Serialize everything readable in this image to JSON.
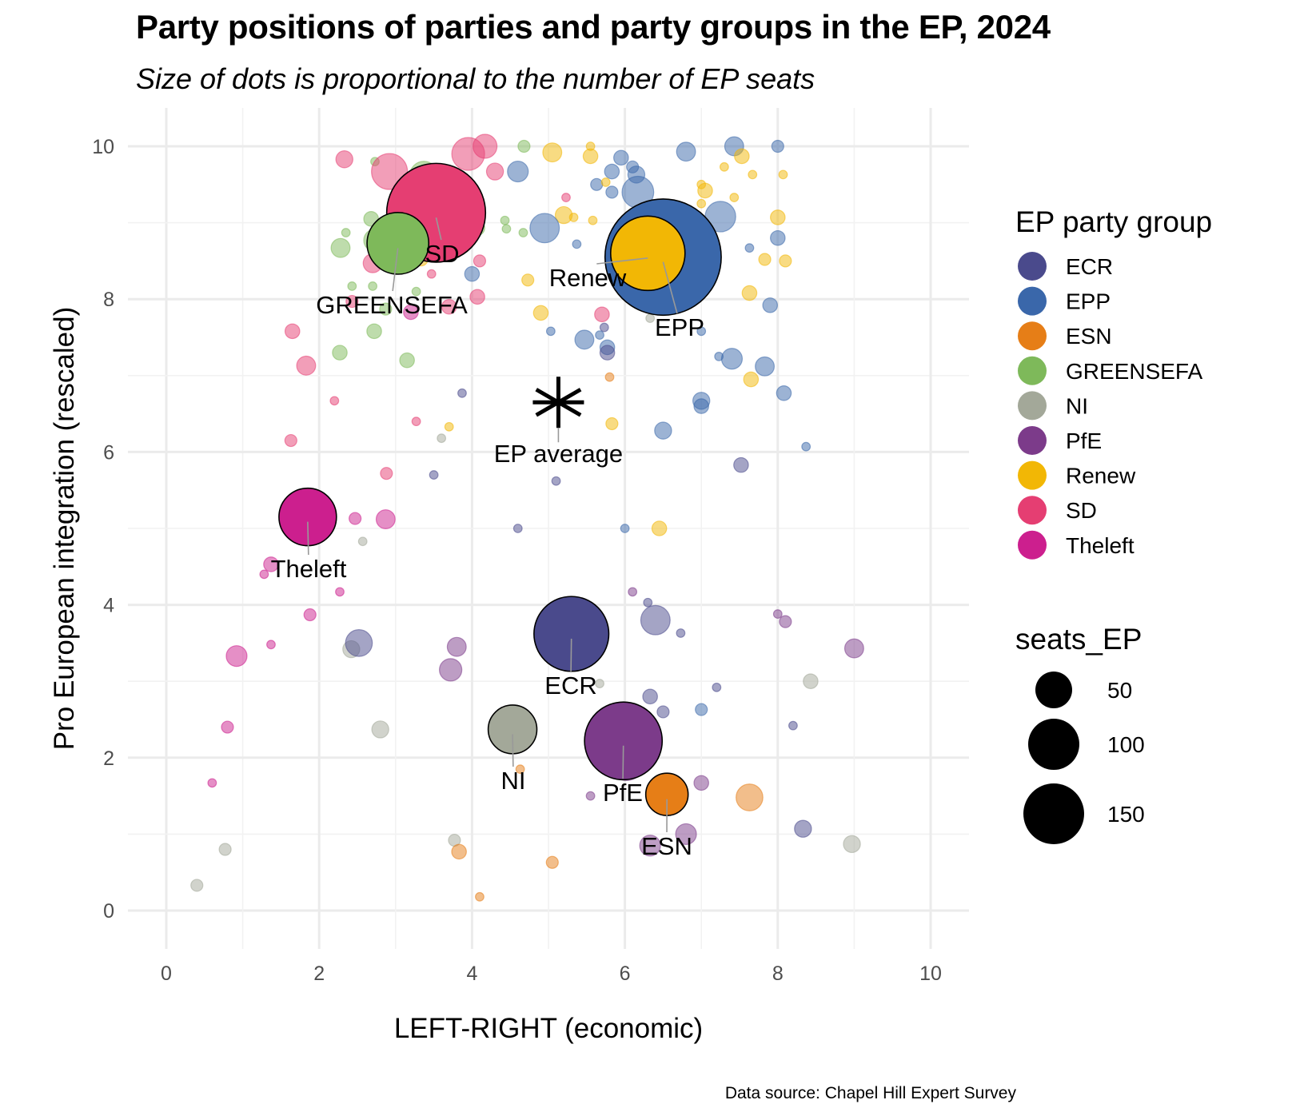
{
  "chart_data": {
    "type": "scatter",
    "title": "Party positions of parties and party groups in the EP, 2024",
    "subtitle": "Size of dots is proportional to the number of EP seats",
    "caption": "Data source: Chapel Hill Expert Survey",
    "xlabel": "LEFT-RIGHT (economic)",
    "ylabel": "Pro European integration (rescaled)",
    "xlim": [
      -0.5,
      10.5
    ],
    "ylim": [
      -0.5,
      10.5
    ],
    "xticks": [
      0,
      2,
      4,
      6,
      8,
      10
    ],
    "yticks": [
      0,
      2,
      4,
      6,
      8,
      10
    ],
    "grid": true,
    "legend": {
      "color_title": "EP party group",
      "size_title": "seats_EP",
      "position": "right",
      "groups": [
        {
          "name": "ECR",
          "color": "#4A4A8C"
        },
        {
          "name": "EPP",
          "color": "#3A67AA"
        },
        {
          "name": "ESN",
          "color": "#E67E17"
        },
        {
          "name": "GREENSEFA",
          "color": "#7EB95A"
        },
        {
          "name": "NI",
          "color": "#A3A899"
        },
        {
          "name": "PfE",
          "color": "#7C3B8A"
        },
        {
          "name": "Renew",
          "color": "#F2B705"
        },
        {
          "name": "SD",
          "color": "#E53E72"
        },
        {
          "name": "Theleft",
          "color": "#CC1F8E"
        }
      ],
      "size_breaks": [
        50,
        100,
        150
      ]
    },
    "group_points": [
      {
        "group": "EPP",
        "x": 6.5,
        "y": 8.55,
        "seats": 188,
        "label": "EPP"
      },
      {
        "group": "Renew",
        "x": 6.3,
        "y": 8.6,
        "seats": 77,
        "label": "Renew"
      },
      {
        "group": "SD",
        "x": 3.53,
        "y": 9.13,
        "seats": 136,
        "label": "SD"
      },
      {
        "group": "GREENSEFA",
        "x": 3.03,
        "y": 8.73,
        "seats": 53,
        "label": "GREENSEFA"
      },
      {
        "group": "Theleft",
        "x": 1.85,
        "y": 5.15,
        "seats": 46,
        "label": "Theleft"
      },
      {
        "group": "ECR",
        "x": 5.3,
        "y": 3.62,
        "seats": 78,
        "label": "ECR"
      },
      {
        "group": "NI",
        "x": 4.53,
        "y": 2.37,
        "seats": 33,
        "label": "NI"
      },
      {
        "group": "PfE",
        "x": 5.98,
        "y": 2.22,
        "seats": 84,
        "label": "PfE"
      },
      {
        "group": "ESN",
        "x": 6.55,
        "y": 1.52,
        "seats": 25,
        "label": "ESN"
      }
    ],
    "ep_average": {
      "x": 5.13,
      "y": 6.65,
      "label": "EP average"
    },
    "party_points": [
      {
        "group": "SD",
        "x": 2.33,
        "y": 9.83,
        "seats": 4
      },
      {
        "group": "GREENSEFA",
        "x": 2.73,
        "y": 9.8,
        "seats": 1
      },
      {
        "group": "SD",
        "x": 2.92,
        "y": 9.67,
        "seats": 18
      },
      {
        "group": "GREENSEFA",
        "x": 3.37,
        "y": 9.62,
        "seats": 11
      },
      {
        "group": "SD",
        "x": 3.27,
        "y": 9.45,
        "seats": 3
      },
      {
        "group": "SD",
        "x": 3.95,
        "y": 9.9,
        "seats": 15
      },
      {
        "group": "SD",
        "x": 4.17,
        "y": 10.0,
        "seats": 8
      },
      {
        "group": "GREENSEFA",
        "x": 4.68,
        "y": 10.0,
        "seats": 2
      },
      {
        "group": "SD",
        "x": 4.3,
        "y": 9.67,
        "seats": 4
      },
      {
        "group": "EPP",
        "x": 4.6,
        "y": 9.67,
        "seats": 6
      },
      {
        "group": "GREENSEFA",
        "x": 2.68,
        "y": 9.05,
        "seats": 3
      },
      {
        "group": "GREENSEFA",
        "x": 2.35,
        "y": 8.87,
        "seats": 1
      },
      {
        "group": "GREENSEFA",
        "x": 2.73,
        "y": 8.77,
        "seats": 7
      },
      {
        "group": "GREENSEFA",
        "x": 2.28,
        "y": 8.67,
        "seats": 5
      },
      {
        "group": "SD",
        "x": 2.7,
        "y": 8.47,
        "seats": 5
      },
      {
        "group": "SD",
        "x": 3.33,
        "y": 8.8,
        "seats": 13
      },
      {
        "group": "Renew",
        "x": 3.33,
        "y": 8.53,
        "seats": 3
      },
      {
        "group": "SD",
        "x": 3.47,
        "y": 8.33,
        "seats": 1
      },
      {
        "group": "GREENSEFA",
        "x": 4.07,
        "y": 8.93,
        "seats": 3
      },
      {
        "group": "GREENSEFA",
        "x": 4.43,
        "y": 9.03,
        "seats": 1
      },
      {
        "group": "GREENSEFA",
        "x": 4.67,
        "y": 8.87,
        "seats": 1
      },
      {
        "group": "SD",
        "x": 4.1,
        "y": 8.5,
        "seats": 2
      },
      {
        "group": "EPP",
        "x": 4.0,
        "y": 8.33,
        "seats": 3
      },
      {
        "group": "GREENSEFA",
        "x": 2.43,
        "y": 8.17,
        "seats": 1
      },
      {
        "group": "GREENSEFA",
        "x": 2.7,
        "y": 8.17,
        "seats": 1
      },
      {
        "group": "GREENSEFA",
        "x": 3.27,
        "y": 8.1,
        "seats": 1
      },
      {
        "group": "SD",
        "x": 2.43,
        "y": 7.97,
        "seats": 2
      },
      {
        "group": "GREENSEFA",
        "x": 2.87,
        "y": 7.87,
        "seats": 2
      },
      {
        "group": "Theleft",
        "x": 3.2,
        "y": 7.83,
        "seats": 3
      },
      {
        "group": "SD",
        "x": 3.7,
        "y": 7.9,
        "seats": 3
      },
      {
        "group": "SD",
        "x": 4.07,
        "y": 8.03,
        "seats": 3
      },
      {
        "group": "SD",
        "x": 1.65,
        "y": 7.58,
        "seats": 3
      },
      {
        "group": "GREENSEFA",
        "x": 2.72,
        "y": 7.58,
        "seats": 3
      },
      {
        "group": "GREENSEFA",
        "x": 2.27,
        "y": 7.3,
        "seats": 3
      },
      {
        "group": "GREENSEFA",
        "x": 3.15,
        "y": 7.2,
        "seats": 3
      },
      {
        "group": "SD",
        "x": 1.83,
        "y": 7.13,
        "seats": 5
      },
      {
        "group": "SD",
        "x": 2.2,
        "y": 6.67,
        "seats": 1
      },
      {
        "group": "SD",
        "x": 1.63,
        "y": 6.15,
        "seats": 2
      },
      {
        "group": "SD",
        "x": 3.27,
        "y": 6.4,
        "seats": 1
      },
      {
        "group": "ECR",
        "x": 3.87,
        "y": 6.77,
        "seats": 1
      },
      {
        "group": "Renew",
        "x": 3.7,
        "y": 6.33,
        "seats": 1
      },
      {
        "group": "NI",
        "x": 3.6,
        "y": 6.18,
        "seats": 1
      },
      {
        "group": "SD",
        "x": 2.88,
        "y": 5.72,
        "seats": 2
      },
      {
        "group": "ECR",
        "x": 3.5,
        "y": 5.7,
        "seats": 1
      },
      {
        "group": "Theleft",
        "x": 2.47,
        "y": 5.13,
        "seats": 2
      },
      {
        "group": "Theleft",
        "x": 2.87,
        "y": 5.12,
        "seats": 5
      },
      {
        "group": "NI",
        "x": 2.57,
        "y": 4.83,
        "seats": 1
      },
      {
        "group": "Theleft",
        "x": 1.37,
        "y": 4.53,
        "seats": 3
      },
      {
        "group": "Theleft",
        "x": 1.28,
        "y": 4.4,
        "seats": 1
      },
      {
        "group": "Theleft",
        "x": 2.27,
        "y": 4.17,
        "seats": 1
      },
      {
        "group": "Theleft",
        "x": 1.88,
        "y": 3.87,
        "seats": 2
      },
      {
        "group": "Theleft",
        "x": 1.37,
        "y": 3.48,
        "seats": 1
      },
      {
        "group": "Theleft",
        "x": 0.92,
        "y": 3.33,
        "seats": 6
      },
      {
        "group": "NI",
        "x": 2.42,
        "y": 3.42,
        "seats": 4
      },
      {
        "group": "ECR",
        "x": 2.52,
        "y": 3.5,
        "seats": 10
      },
      {
        "group": "PfE",
        "x": 3.8,
        "y": 3.45,
        "seats": 5
      },
      {
        "group": "PfE",
        "x": 3.72,
        "y": 3.15,
        "seats": 7
      },
      {
        "group": "Theleft",
        "x": 0.8,
        "y": 2.4,
        "seats": 2
      },
      {
        "group": "NI",
        "x": 2.8,
        "y": 2.37,
        "seats": 4
      },
      {
        "group": "ECR",
        "x": 4.67,
        "y": 2.25,
        "seats": 4
      },
      {
        "group": "ESN",
        "x": 4.63,
        "y": 1.85,
        "seats": 1
      },
      {
        "group": "Theleft",
        "x": 0.6,
        "y": 1.67,
        "seats": 1
      },
      {
        "group": "NI",
        "x": 0.77,
        "y": 0.8,
        "seats": 2
      },
      {
        "group": "NI",
        "x": 0.4,
        "y": 0.33,
        "seats": 2
      },
      {
        "group": "NI",
        "x": 3.77,
        "y": 0.92,
        "seats": 2
      },
      {
        "group": "ESN",
        "x": 3.83,
        "y": 0.77,
        "seats": 3
      },
      {
        "group": "ESN",
        "x": 4.1,
        "y": 0.18,
        "seats": 1
      },
      {
        "group": "ESN",
        "x": 5.05,
        "y": 0.63,
        "seats": 2
      },
      {
        "group": "Renew",
        "x": 5.05,
        "y": 9.92,
        "seats": 5
      },
      {
        "group": "Renew",
        "x": 5.55,
        "y": 10.0,
        "seats": 1
      },
      {
        "group": "Renew",
        "x": 5.55,
        "y": 9.87,
        "seats": 3
      },
      {
        "group": "EPP",
        "x": 5.95,
        "y": 9.85,
        "seats": 3
      },
      {
        "group": "EPP",
        "x": 6.8,
        "y": 9.93,
        "seats": 5
      },
      {
        "group": "EPP",
        "x": 7.43,
        "y": 10.0,
        "seats": 5
      },
      {
        "group": "EPP",
        "x": 8.0,
        "y": 10.0,
        "seats": 2
      },
      {
        "group": "Renew",
        "x": 7.53,
        "y": 9.87,
        "seats": 3
      },
      {
        "group": "EPP",
        "x": 5.83,
        "y": 9.67,
        "seats": 3
      },
      {
        "group": "EPP",
        "x": 6.1,
        "y": 9.73,
        "seats": 2
      },
      {
        "group": "EPP",
        "x": 6.15,
        "y": 9.63,
        "seats": 4
      },
      {
        "group": "EPP",
        "x": 5.63,
        "y": 9.5,
        "seats": 2
      },
      {
        "group": "Renew",
        "x": 5.75,
        "y": 9.53,
        "seats": 1
      },
      {
        "group": "EPP",
        "x": 5.83,
        "y": 9.4,
        "seats": 2
      },
      {
        "group": "EPP",
        "x": 6.17,
        "y": 9.4,
        "seats": 14
      },
      {
        "group": "Renew",
        "x": 7.3,
        "y": 9.73,
        "seats": 1
      },
      {
        "group": "Renew",
        "x": 7.67,
        "y": 9.63,
        "seats": 1
      },
      {
        "group": "Renew",
        "x": 8.07,
        "y": 9.63,
        "seats": 1
      },
      {
        "group": "Renew",
        "x": 7.0,
        "y": 9.5,
        "seats": 1
      },
      {
        "group": "Renew",
        "x": 7.05,
        "y": 9.42,
        "seats": 3
      },
      {
        "group": "Renew",
        "x": 7.43,
        "y": 9.33,
        "seats": 1
      },
      {
        "group": "Renew",
        "x": 7.0,
        "y": 9.25,
        "seats": 1
      },
      {
        "group": "EPP",
        "x": 7.25,
        "y": 9.08,
        "seats": 13
      },
      {
        "group": "SD",
        "x": 5.23,
        "y": 9.33,
        "seats": 1
      },
      {
        "group": "Renew",
        "x": 5.2,
        "y": 9.1,
        "seats": 4
      },
      {
        "group": "Renew",
        "x": 5.33,
        "y": 9.07,
        "seats": 1
      },
      {
        "group": "Renew",
        "x": 5.58,
        "y": 9.03,
        "seats": 1
      },
      {
        "group": "EPP",
        "x": 6.62,
        "y": 9.07,
        "seats": 4
      },
      {
        "group": "Renew",
        "x": 8.0,
        "y": 9.07,
        "seats": 3
      },
      {
        "group": "EPP",
        "x": 4.95,
        "y": 8.93,
        "seats": 12
      },
      {
        "group": "GREENSEFA",
        "x": 4.45,
        "y": 8.92,
        "seats": 1
      },
      {
        "group": "EPP",
        "x": 8.0,
        "y": 8.8,
        "seats": 3
      },
      {
        "group": "EPP",
        "x": 5.37,
        "y": 8.72,
        "seats": 1
      },
      {
        "group": "EPP",
        "x": 7.63,
        "y": 8.67,
        "seats": 1
      },
      {
        "group": "Renew",
        "x": 7.83,
        "y": 8.52,
        "seats": 2
      },
      {
        "group": "Renew",
        "x": 8.1,
        "y": 8.5,
        "seats": 2
      },
      {
        "group": "Renew",
        "x": 4.73,
        "y": 8.25,
        "seats": 2
      },
      {
        "group": "Renew",
        "x": 7.63,
        "y": 8.08,
        "seats": 3
      },
      {
        "group": "EPP",
        "x": 7.9,
        "y": 7.92,
        "seats": 3
      },
      {
        "group": "Renew",
        "x": 4.9,
        "y": 7.82,
        "seats": 3
      },
      {
        "group": "SD",
        "x": 5.7,
        "y": 7.8,
        "seats": 3
      },
      {
        "group": "EPP",
        "x": 5.03,
        "y": 7.58,
        "seats": 1
      },
      {
        "group": "ECR",
        "x": 5.73,
        "y": 7.63,
        "seats": 1
      },
      {
        "group": "NI",
        "x": 6.33,
        "y": 7.75,
        "seats": 1
      },
      {
        "group": "EPP",
        "x": 7.0,
        "y": 7.58,
        "seats": 1
      },
      {
        "group": "EPP",
        "x": 5.67,
        "y": 7.53,
        "seats": 1
      },
      {
        "group": "EPP",
        "x": 5.47,
        "y": 7.47,
        "seats": 5
      },
      {
        "group": "EPP",
        "x": 5.77,
        "y": 7.37,
        "seats": 3
      },
      {
        "group": "ECR",
        "x": 5.77,
        "y": 7.3,
        "seats": 3
      },
      {
        "group": "EPP",
        "x": 7.23,
        "y": 7.25,
        "seats": 1
      },
      {
        "group": "EPP",
        "x": 7.4,
        "y": 7.22,
        "seats": 6
      },
      {
        "group": "EPP",
        "x": 7.83,
        "y": 7.12,
        "seats": 5
      },
      {
        "group": "Renew",
        "x": 7.65,
        "y": 6.95,
        "seats": 3
      },
      {
        "group": "ESN",
        "x": 5.8,
        "y": 6.98,
        "seats": 1
      },
      {
        "group": "EPP",
        "x": 7.0,
        "y": 6.67,
        "seats": 4
      },
      {
        "group": "EPP",
        "x": 7.0,
        "y": 6.6,
        "seats": 3
      },
      {
        "group": "EPP",
        "x": 8.08,
        "y": 6.77,
        "seats": 3
      },
      {
        "group": "Renew",
        "x": 5.83,
        "y": 6.37,
        "seats": 2
      },
      {
        "group": "EPP",
        "x": 6.5,
        "y": 6.28,
        "seats": 4
      },
      {
        "group": "EPP",
        "x": 8.37,
        "y": 6.07,
        "seats": 1
      },
      {
        "group": "ECR",
        "x": 7.52,
        "y": 5.83,
        "seats": 3
      },
      {
        "group": "ECR",
        "x": 5.1,
        "y": 5.62,
        "seats": 1
      },
      {
        "group": "ECR",
        "x": 4.6,
        "y": 5.0,
        "seats": 1
      },
      {
        "group": "EPP",
        "x": 6.0,
        "y": 5.0,
        "seats": 1
      },
      {
        "group": "Renew",
        "x": 6.45,
        "y": 5.0,
        "seats": 3
      },
      {
        "group": "PfE",
        "x": 6.1,
        "y": 4.17,
        "seats": 1
      },
      {
        "group": "ECR",
        "x": 6.3,
        "y": 4.03,
        "seats": 1
      },
      {
        "group": "ECR",
        "x": 6.4,
        "y": 3.8,
        "seats": 12
      },
      {
        "group": "ECR",
        "x": 6.73,
        "y": 3.63,
        "seats": 1
      },
      {
        "group": "PfE",
        "x": 8.0,
        "y": 3.88,
        "seats": 1
      },
      {
        "group": "PfE",
        "x": 8.1,
        "y": 3.78,
        "seats": 2
      },
      {
        "group": "PfE",
        "x": 9.0,
        "y": 3.43,
        "seats": 5
      },
      {
        "group": "NI",
        "x": 5.67,
        "y": 2.97,
        "seats": 1
      },
      {
        "group": "NI",
        "x": 8.43,
        "y": 3.0,
        "seats": 3
      },
      {
        "group": "ECR",
        "x": 7.2,
        "y": 2.92,
        "seats": 1
      },
      {
        "group": "ECR",
        "x": 6.33,
        "y": 2.8,
        "seats": 3
      },
      {
        "group": "ECR",
        "x": 6.5,
        "y": 2.6,
        "seats": 2
      },
      {
        "group": "EPP",
        "x": 7.0,
        "y": 2.63,
        "seats": 2
      },
      {
        "group": "ECR",
        "x": 8.2,
        "y": 2.42,
        "seats": 1
      },
      {
        "group": "PfE",
        "x": 6.02,
        "y": 1.95,
        "seats": 20
      },
      {
        "group": "PfE",
        "x": 5.55,
        "y": 1.5,
        "seats": 1
      },
      {
        "group": "PfE",
        "x": 7.0,
        "y": 1.67,
        "seats": 3
      },
      {
        "group": "ESN",
        "x": 7.63,
        "y": 1.48,
        "seats": 10
      },
      {
        "group": "PfE",
        "x": 6.8,
        "y": 1.0,
        "seats": 6
      },
      {
        "group": "PfE",
        "x": 6.33,
        "y": 0.85,
        "seats": 6
      },
      {
        "group": "ECR",
        "x": 8.33,
        "y": 1.07,
        "seats": 4
      },
      {
        "group": "NI",
        "x": 8.97,
        "y": 0.87,
        "seats": 4
      }
    ]
  }
}
